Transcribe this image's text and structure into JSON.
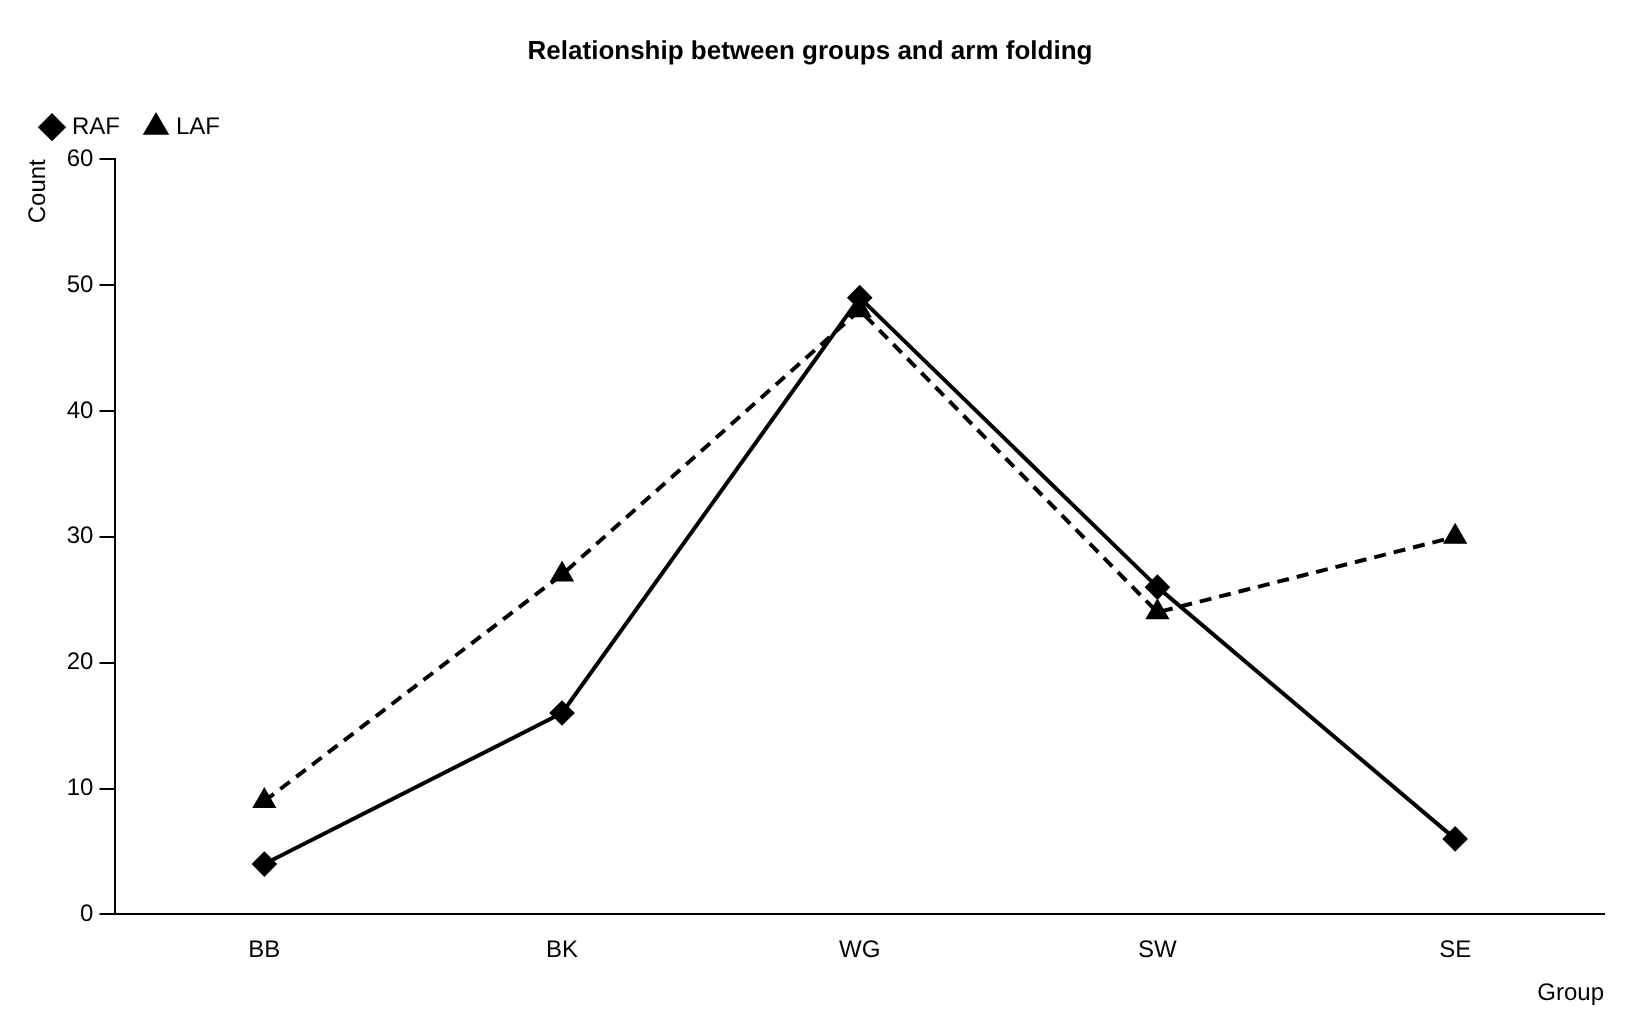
{
  "chart_data": {
    "type": "line",
    "title": "Relationship between groups and arm folding",
    "xlabel": "Group",
    "ylabel": "Count",
    "categories": [
      "BB",
      "BK",
      "WG",
      "SW",
      "SE"
    ],
    "series": [
      {
        "name": "RAF",
        "color": "#000000",
        "values": [
          4,
          16,
          49,
          26,
          6
        ],
        "marker": "diamond",
        "line_style": "solid"
      },
      {
        "name": "LAF",
        "color": "#000000",
        "values": [
          9,
          27,
          48,
          24,
          30
        ],
        "marker": "triangle",
        "line_style": "dashed"
      }
    ],
    "ylim": [
      0,
      60
    ],
    "yticks": [
      0,
      10,
      20,
      30,
      40,
      50,
      60
    ],
    "grid": false,
    "legend": "top left"
  }
}
